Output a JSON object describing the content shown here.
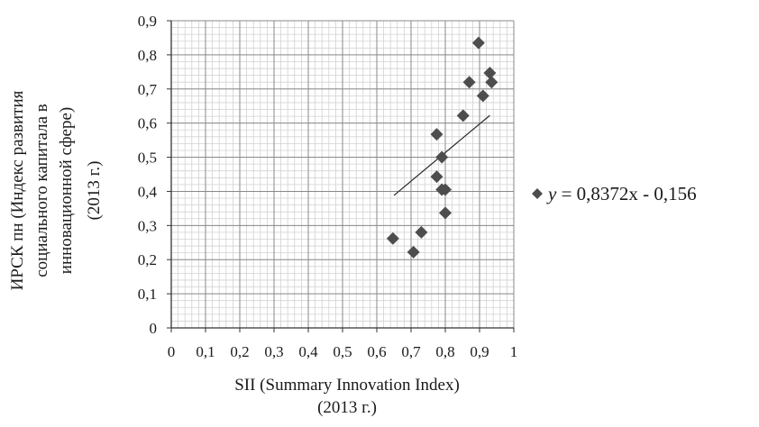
{
  "chart_data": {
    "type": "scatter",
    "xlim": [
      0,
      1
    ],
    "ylim": [
      0,
      0.9
    ],
    "x_ticks": [
      "0",
      "0,1",
      "0,2",
      "0,3",
      "0,4",
      "0,5",
      "0,6",
      "0,7",
      "0,8",
      "0,9",
      "1"
    ],
    "y_ticks": [
      "0",
      "0,1",
      "0,2",
      "0,3",
      "0,4",
      "0,5",
      "0,6",
      "0,7",
      "0,8",
      "0,9"
    ],
    "xlabel": [
      "SII (Summary Innovation Index)",
      "(2013 г.)"
    ],
    "ylabel": [
      "ИРСК пн (Индекс развития",
      "социального капитала в",
      "инновационной сфере)",
      "(2013 г.)"
    ],
    "grid": true,
    "grid_minor": true,
    "legend_position": "right",
    "marker": "diamond",
    "marker_color": "#4d4d4d",
    "series": [
      {
        "points": [
          [
            0.647,
            0.262
          ],
          [
            0.707,
            0.222
          ],
          [
            0.73,
            0.28
          ],
          [
            0.775,
            0.567
          ],
          [
            0.775,
            0.443
          ],
          [
            0.79,
            0.5
          ],
          [
            0.79,
            0.405
          ],
          [
            0.8,
            0.405
          ],
          [
            0.8,
            0.337
          ],
          [
            0.852,
            0.622
          ],
          [
            0.87,
            0.72
          ],
          [
            0.897,
            0.835
          ],
          [
            0.91,
            0.68
          ],
          [
            0.93,
            0.747
          ],
          [
            0.935,
            0.72
          ]
        ]
      }
    ],
    "trendline": {
      "slope": 0.8372,
      "intercept": -0.156,
      "x_start": 0.65,
      "x_end": 0.93,
      "label_prefix": "y",
      "label_rest": " = 0,8372x - 0,156"
    }
  }
}
